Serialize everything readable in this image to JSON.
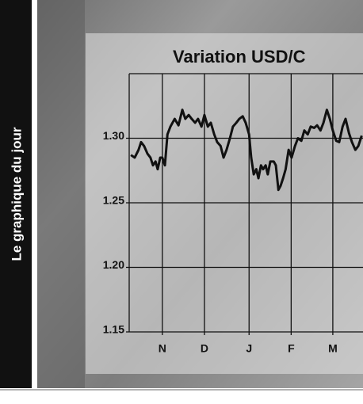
{
  "banner": "Le graphique du jour",
  "chart_data": {
    "type": "line",
    "title": "Variation USD/C",
    "x": [
      0.04,
      0.13,
      0.22,
      0.28,
      0.35,
      0.43,
      0.5,
      0.56,
      0.62,
      0.67,
      0.73,
      0.78,
      0.84,
      0.9,
      0.97,
      1.07,
      1.16,
      1.25,
      1.32,
      1.4,
      1.47,
      1.55,
      1.62,
      1.7,
      1.77,
      1.85,
      1.92,
      2.0,
      2.07,
      2.15,
      2.22,
      2.29,
      2.37,
      2.44,
      2.52,
      2.59,
      2.67,
      2.74,
      2.82,
      2.87,
      2.93,
      2.99,
      3.04,
      3.1,
      3.15,
      3.21,
      3.26,
      3.32,
      3.4,
      3.45,
      3.51,
      3.56,
      3.62,
      3.68,
      3.75,
      3.82,
      3.9,
      3.97,
      4.05,
      4.12,
      4.2,
      4.27,
      4.35,
      4.42,
      4.5,
      4.57,
      4.65,
      4.72,
      4.79,
      4.87,
      4.94,
      5.02,
      5.09,
      5.17,
      5.24,
      5.32,
      5.39,
      5.47
    ],
    "series": [
      {
        "color": "#111111",
        "values": [
          1.287,
          1.285,
          1.291,
          1.297,
          1.294,
          1.288,
          1.285,
          1.279,
          1.282,
          1.276,
          1.285,
          1.285,
          1.279,
          1.303,
          1.309,
          1.315,
          1.31,
          1.322,
          1.315,
          1.318,
          1.315,
          1.312,
          1.315,
          1.309,
          1.318,
          1.309,
          1.312,
          1.303,
          1.297,
          1.294,
          1.285,
          1.291,
          1.3,
          1.309,
          1.312,
          1.315,
          1.317,
          1.312,
          1.303,
          1.285,
          1.272,
          1.276,
          1.269,
          1.279,
          1.276,
          1.279,
          1.272,
          1.282,
          1.282,
          1.279,
          1.26,
          1.263,
          1.269,
          1.276,
          1.291,
          1.285,
          1.294,
          1.3,
          1.298,
          1.306,
          1.303,
          1.309,
          1.308,
          1.31,
          1.306,
          1.312,
          1.322,
          1.315,
          1.306,
          1.298,
          1.297,
          1.309,
          1.315,
          1.304,
          1.297,
          1.291,
          1.294,
          1.302
        ]
      }
    ],
    "xlim": [
      0,
      5.5
    ],
    "xticks": [
      {
        "value": 0.78,
        "label": "N"
      },
      {
        "value": 1.77,
        "label": "D"
      },
      {
        "value": 2.82,
        "label": "J"
      },
      {
        "value": 3.81,
        "label": "F"
      },
      {
        "value": 4.79,
        "label": "M"
      }
    ],
    "ylim": [
      1.15,
      1.35
    ],
    "yticks": [
      1.15,
      {
        "value": 1.2,
        "label": "1.20"
      },
      1.25,
      {
        "value": 1.3,
        "label": "1.30"
      }
    ],
    "grid": true
  }
}
